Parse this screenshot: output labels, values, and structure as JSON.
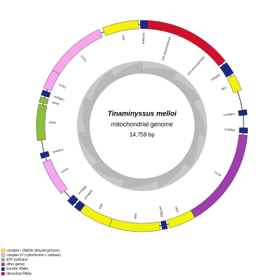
{
  "title": "Tinaminyssus melloi",
  "subtitle": "mitochondrial genome",
  "size": "14,759 bp",
  "genes": [
    "ND2",
    "trnM(cat)",
    "16S ribosomal RNA",
    "12S ribosomal RNA",
    "trnI(gat)",
    "ND1",
    "trnS(tga)",
    "trnQ(ttg)",
    "CYTB",
    "ND6",
    "trnP(tgg)",
    "ND4",
    "ND5",
    "trnF(gaa)",
    "trnH(gtg)",
    "COX3",
    "trnG(tcc)",
    "ATP6",
    "ATP8",
    "trnD(gtc)",
    "COX2",
    "COX1"
  ],
  "legend": [
    {
      "label": "complex I (NADH dehydrogenase)",
      "color": "#f2f20a"
    },
    {
      "label": "complex IV (cytochrome c oxidase)",
      "color": "#f5a6ee"
    },
    {
      "label": "ATP synthase",
      "color": "#8cbf3c"
    },
    {
      "label": "other genes",
      "color": "#a03cb0"
    },
    {
      "label": "transfer RNAs",
      "color": "#1b2a86"
    },
    {
      "label": "ribosomal RNAs",
      "color": "#d2102c"
    }
  ]
}
